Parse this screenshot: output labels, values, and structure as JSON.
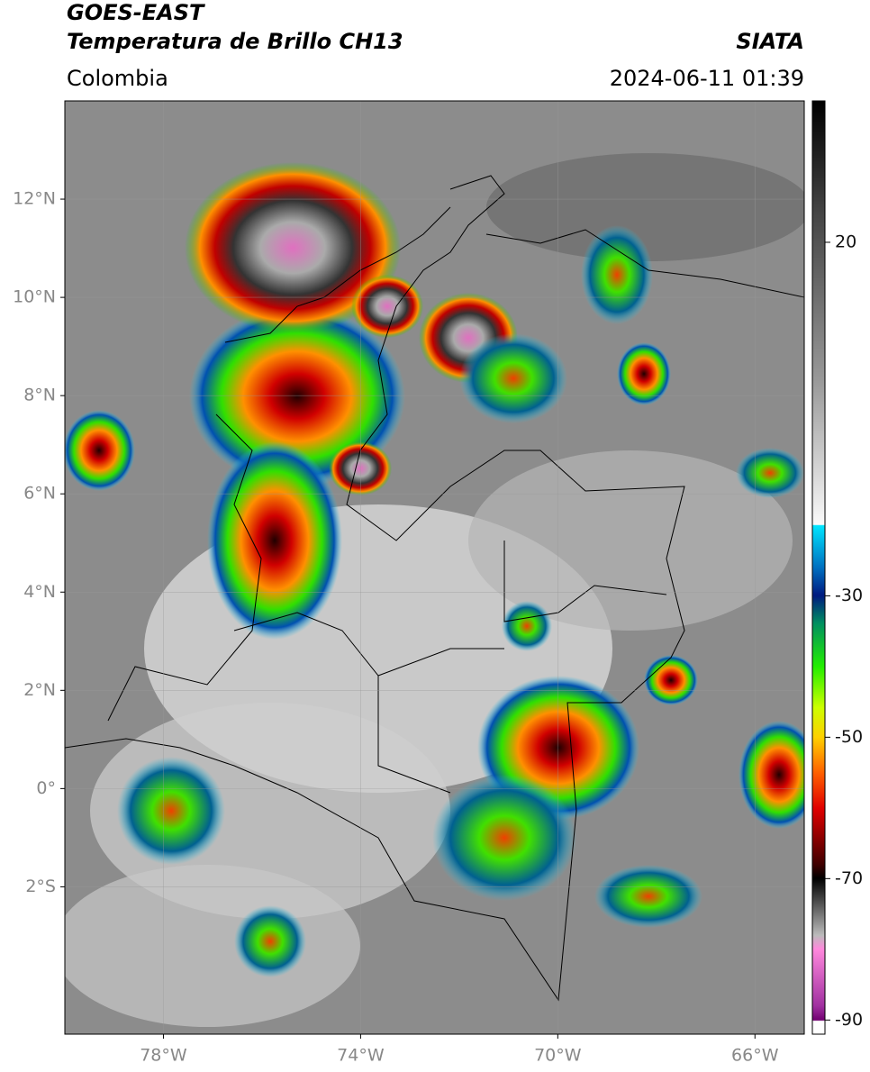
{
  "header": {
    "title": "GOES-EAST",
    "subtitle": "Temperatura de Brillo CH13",
    "source": "SIATA",
    "region": "Colombia",
    "timestamp": "2024-06-11 01:39"
  },
  "map": {
    "lonlim": [
      -80,
      -65
    ],
    "latlim": [
      -5,
      14
    ],
    "grid": true,
    "lat_ticks": [
      {
        "value": 12,
        "label": "12°N"
      },
      {
        "value": 10,
        "label": "10°N"
      },
      {
        "value": 8,
        "label": "8°N"
      },
      {
        "value": 6,
        "label": "6°N"
      },
      {
        "value": 4,
        "label": "4°N"
      },
      {
        "value": 2,
        "label": "2°N"
      },
      {
        "value": 0,
        "label": "0°"
      },
      {
        "value": -2,
        "label": "2°S"
      }
    ],
    "lon_ticks": [
      {
        "value": -78,
        "label": "78°W"
      },
      {
        "value": -74,
        "label": "74°W"
      },
      {
        "value": -70,
        "label": "70°W"
      },
      {
        "value": -66,
        "label": "66°W"
      }
    ]
  },
  "colorbar": {
    "lim": [
      -92,
      40
    ],
    "ticks": [
      20,
      -30,
      -50,
      -70,
      -90
    ]
  }
}
